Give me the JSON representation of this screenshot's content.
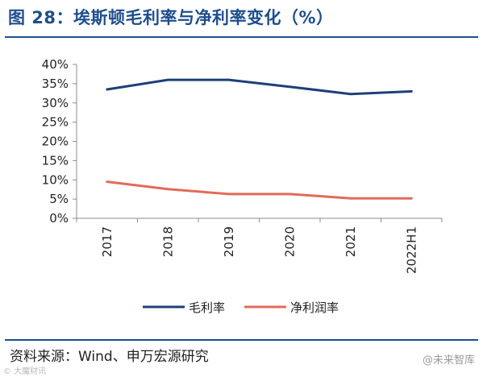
{
  "title": "图 28：埃斯顿毛利率与净利率变化（%）",
  "source": "资料来源：Wind、申万宏源研究",
  "watermark_left": "© 大魔财讯",
  "watermark_right": "@未来智库",
  "chart_data": {
    "type": "line",
    "categories": [
      "2017",
      "2018",
      "2019",
      "2020",
      "2021",
      "2022H1"
    ],
    "series": [
      {
        "name": "毛利率",
        "values": [
          33.5,
          36.0,
          36.0,
          34.2,
          32.3,
          33.0
        ],
        "color": "#1f3f7a"
      },
      {
        "name": "净利润率",
        "values": [
          9.5,
          7.6,
          6.3,
          6.3,
          5.2,
          5.2
        ],
        "color": "#e36a5a"
      }
    ],
    "y_ticks": [
      "0%",
      "5%",
      "10%",
      "15%",
      "20%",
      "25%",
      "30%",
      "35%",
      "40%"
    ],
    "ylim": [
      0,
      40
    ],
    "grid": false,
    "legend_position": "bottom"
  }
}
